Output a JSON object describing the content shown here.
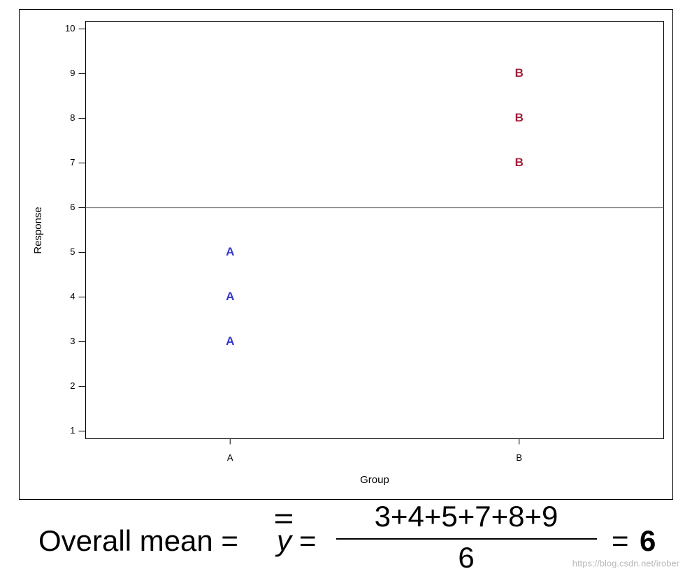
{
  "chart_data": {
    "type": "letter-scatter",
    "x_label": "Group",
    "y_label": "Response",
    "categories": [
      "A",
      "B"
    ],
    "series": [
      {
        "name": "A",
        "color": "#3535cf",
        "x": [
          "A",
          "A",
          "A"
        ],
        "values": [
          3,
          4,
          5
        ]
      },
      {
        "name": "B",
        "color": "#a3203a",
        "x": [
          "B",
          "B",
          "B"
        ],
        "values": [
          7,
          8,
          9
        ]
      }
    ],
    "ylim": [
      0.83,
      10.17
    ],
    "yticks": [
      1,
      2,
      3,
      4,
      5,
      6,
      7,
      8,
      9,
      10
    ],
    "reference_line": 6
  },
  "formula": {
    "lhs": "Overall mean =",
    "symbol": "y",
    "equals": "=",
    "numerator": "3+4+5+7+8+9",
    "denominator": "6",
    "result_equals": "=",
    "result": "6"
  },
  "watermark": "https://blog.csdn.net/irober"
}
